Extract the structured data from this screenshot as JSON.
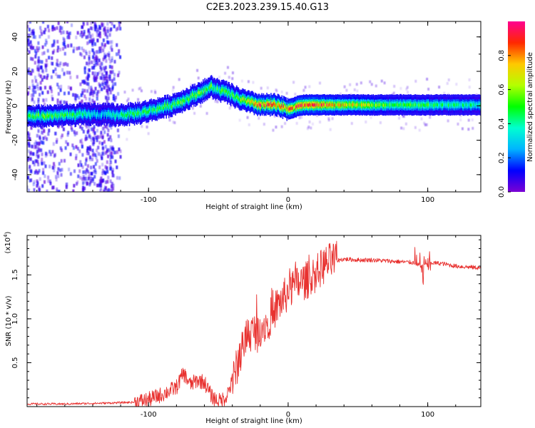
{
  "figure": {
    "title": "C2E3.2023.239.15.40.G13"
  },
  "chart_data": [
    {
      "type": "heatmap",
      "xlabel": "Height of straight line (km)",
      "ylabel": "Frequency (Hz)",
      "xlim": [
        -187,
        138
      ],
      "ylim": [
        -50,
        49
      ],
      "xticks": [
        -100,
        0,
        100
      ],
      "yticks": [
        -40,
        -20,
        0,
        20,
        40
      ],
      "colorbar": {
        "label": "Normalized spectral amplitude",
        "range": [
          0,
          1
        ],
        "ticks": [
          0.0,
          0.2,
          0.4,
          0.6,
          0.8
        ],
        "colormap": [
          "#7b00d4",
          "#0000ff",
          "#00b4ff",
          "#00ffd0",
          "#00ff00",
          "#b4ff00",
          "#ffc800",
          "#ff2800",
          "#ff0090"
        ]
      },
      "ridge": [
        {
          "x": -187,
          "f": -6,
          "a": 0.45
        },
        {
          "x": -175,
          "f": -6,
          "a": 0.55
        },
        {
          "x": -165,
          "f": -5.5,
          "a": 0.5
        },
        {
          "x": -155,
          "f": -5.5,
          "a": 0.5
        },
        {
          "x": -145,
          "f": -5,
          "a": 0.4
        },
        {
          "x": -135,
          "f": -5,
          "a": 0.3
        },
        {
          "x": -125,
          "f": -5.5,
          "a": 0.4
        },
        {
          "x": -115,
          "f": -5,
          "a": 0.45
        },
        {
          "x": -105,
          "f": -4,
          "a": 0.45
        },
        {
          "x": -95,
          "f": -2,
          "a": 0.5
        },
        {
          "x": -85,
          "f": 0,
          "a": 0.5
        },
        {
          "x": -75,
          "f": 3,
          "a": 0.55
        },
        {
          "x": -65,
          "f": 7,
          "a": 0.55
        },
        {
          "x": -55,
          "f": 11,
          "a": 0.5
        },
        {
          "x": -50,
          "f": 9,
          "a": 0.5
        },
        {
          "x": -45,
          "f": 8,
          "a": 0.55
        },
        {
          "x": -40,
          "f": 6,
          "a": 0.55
        },
        {
          "x": -35,
          "f": 4,
          "a": 0.6
        },
        {
          "x": -28,
          "f": 2,
          "a": 0.7
        },
        {
          "x": -20,
          "f": 0.5,
          "a": 0.85
        },
        {
          "x": -10,
          "f": 0.5,
          "a": 0.9
        },
        {
          "x": 0,
          "f": -2,
          "a": 0.8
        },
        {
          "x": 10,
          "f": 0.5,
          "a": 0.9
        },
        {
          "x": 25,
          "f": 0.5,
          "a": 0.85
        },
        {
          "x": 40,
          "f": 0.5,
          "a": 0.7
        },
        {
          "x": 60,
          "f": 0.5,
          "a": 0.6
        },
        {
          "x": 80,
          "f": 0.5,
          "a": 0.5
        },
        {
          "x": 100,
          "f": 0.5,
          "a": 0.48
        },
        {
          "x": 120,
          "f": 0.5,
          "a": 0.45
        },
        {
          "x": 138,
          "f": 0.5,
          "a": 0.4
        }
      ]
    },
    {
      "type": "line",
      "xlabel": "Height of straight line (km)",
      "ylabel": "SNR (10 * v/v)",
      "y_multiplier_label": "(x10",
      "y_multiplier_exp": "4",
      "y_multiplier_close": ")",
      "xlim": [
        -187,
        138
      ],
      "ylim": [
        0,
        1.95
      ],
      "xticks": [
        -100,
        0,
        100
      ],
      "yticks": [
        0.5,
        1.0,
        1.5
      ],
      "series": [
        {
          "color": "#e8312f",
          "x": [
            -187,
            -160,
            -130,
            -110,
            -100,
            -90,
            -80,
            -75,
            -70,
            -65,
            -60,
            -55,
            -50,
            -45,
            -40,
            -35,
            -30,
            -25,
            -20,
            -15,
            -10,
            -5,
            0,
            5,
            10,
            15,
            20,
            25,
            30,
            40,
            50,
            60,
            70,
            80,
            90,
            95,
            100,
            110,
            120,
            138
          ],
          "y": [
            0.03,
            0.03,
            0.04,
            0.05,
            0.08,
            0.14,
            0.22,
            0.38,
            0.25,
            0.3,
            0.28,
            0.12,
            0.06,
            0.1,
            0.28,
            0.55,
            0.82,
            0.85,
            0.9,
            0.95,
            1.1,
            1.2,
            1.3,
            1.38,
            1.42,
            1.45,
            1.52,
            1.6,
            1.65,
            1.68,
            1.67,
            1.67,
            1.66,
            1.65,
            1.64,
            1.6,
            1.64,
            1.63,
            1.6,
            1.58
          ]
        }
      ]
    }
  ]
}
